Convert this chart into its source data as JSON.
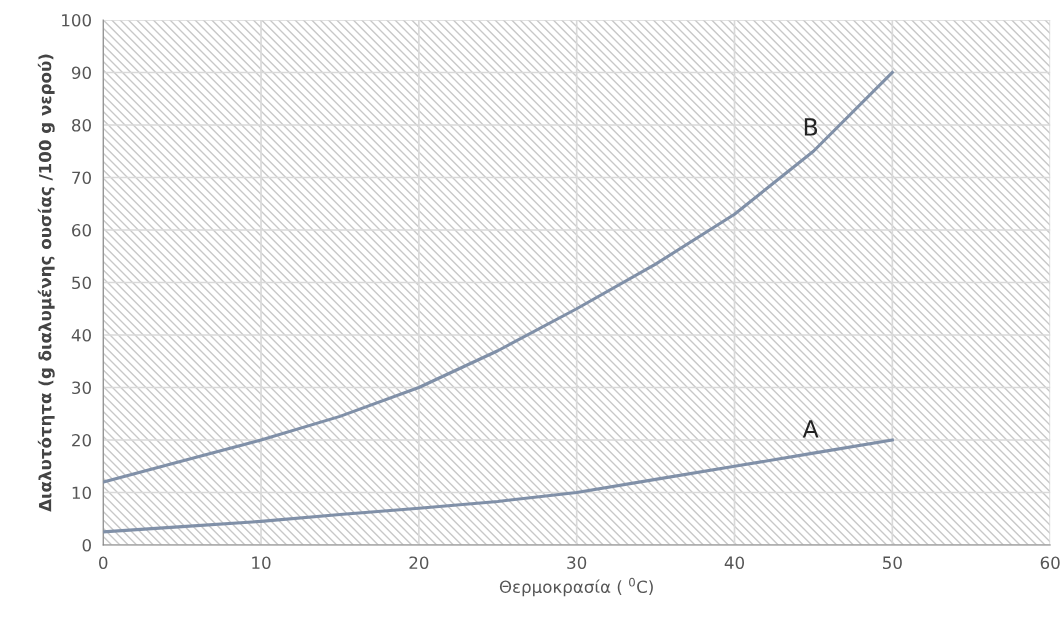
{
  "chart_data": {
    "type": "line",
    "xlabel": "Θερμοκρασία ( $^{0}$C)",
    "ylabel": "Διαλυτότητα (g διαλυμένης ουσίας /100 g νερού)",
    "series": [
      {
        "name": "A",
        "color": "#8090a8",
        "x": [
          0,
          5,
          10,
          15,
          20,
          25,
          30,
          35,
          40,
          45,
          50
        ],
        "values": [
          2.5,
          3.5,
          4.5,
          5.8,
          7,
          8.3,
          10,
          12.5,
          15,
          17.5,
          20
        ]
      },
      {
        "name": "B",
        "color": "#8090a8",
        "x": [
          0,
          5,
          10,
          15,
          20,
          25,
          30,
          35,
          40,
          45,
          50
        ],
        "values": [
          12,
          16,
          20,
          24.5,
          30,
          37,
          45,
          53.5,
          63,
          75,
          90
        ]
      }
    ],
    "xlim": [
      0,
      60
    ],
    "xticks": [
      0,
      10,
      20,
      30,
      40,
      50,
      60
    ],
    "ylim": [
      0,
      100
    ],
    "yticks": [
      0,
      10,
      20,
      30,
      40,
      50,
      60,
      70,
      80,
      90,
      100
    ],
    "grid": true,
    "legend": false,
    "marker": "none",
    "line_style": "solid"
  }
}
